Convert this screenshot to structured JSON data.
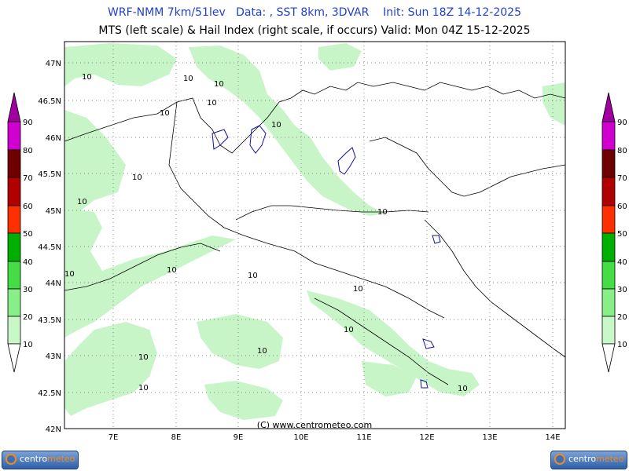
{
  "header": {
    "line1": "WRF-NMM 7km/51lev   Data: , SST 8km, 3DVAR    Init: Sun 18Z 14-12-2025",
    "line2": "MTS (left scale) & Hail Index (right scale, if occurs) Valid: Mon 04Z 15-12-2025"
  },
  "map": {
    "lat_labels": [
      "47N",
      "46.5N",
      "46N",
      "45.5N",
      "45N",
      "44.5N",
      "44N",
      "43.5N",
      "43N",
      "42.5N",
      "42N"
    ],
    "lon_labels": [
      "7E",
      "8E",
      "9E",
      "10E",
      "11E",
      "12E",
      "13E",
      "14E"
    ],
    "copyright": "(C) www.centrometeo.com",
    "contour_labels": [
      "10",
      "10",
      "10",
      "10",
      "10",
      "10",
      "10",
      "10",
      "10",
      "10",
      "10",
      "10",
      "10",
      "10",
      "10",
      "10",
      "10",
      "10"
    ]
  },
  "scale": {
    "labels": [
      "90",
      "80",
      "70",
      "60",
      "50",
      "40",
      "30",
      "20",
      "10"
    ],
    "colors": [
      "#a000a0",
      "#d000d0",
      "#700000",
      "#b00000",
      "#ff3000",
      "#00b000",
      "#44dd44",
      "#88ee88",
      "#c8f8c8",
      "#ffffff"
    ]
  },
  "logo": {
    "text_a": "centro",
    "text_b": "meteo"
  },
  "colors": {
    "fill_light": "#c8f5c8",
    "title_blue": "#1f3fd6"
  }
}
